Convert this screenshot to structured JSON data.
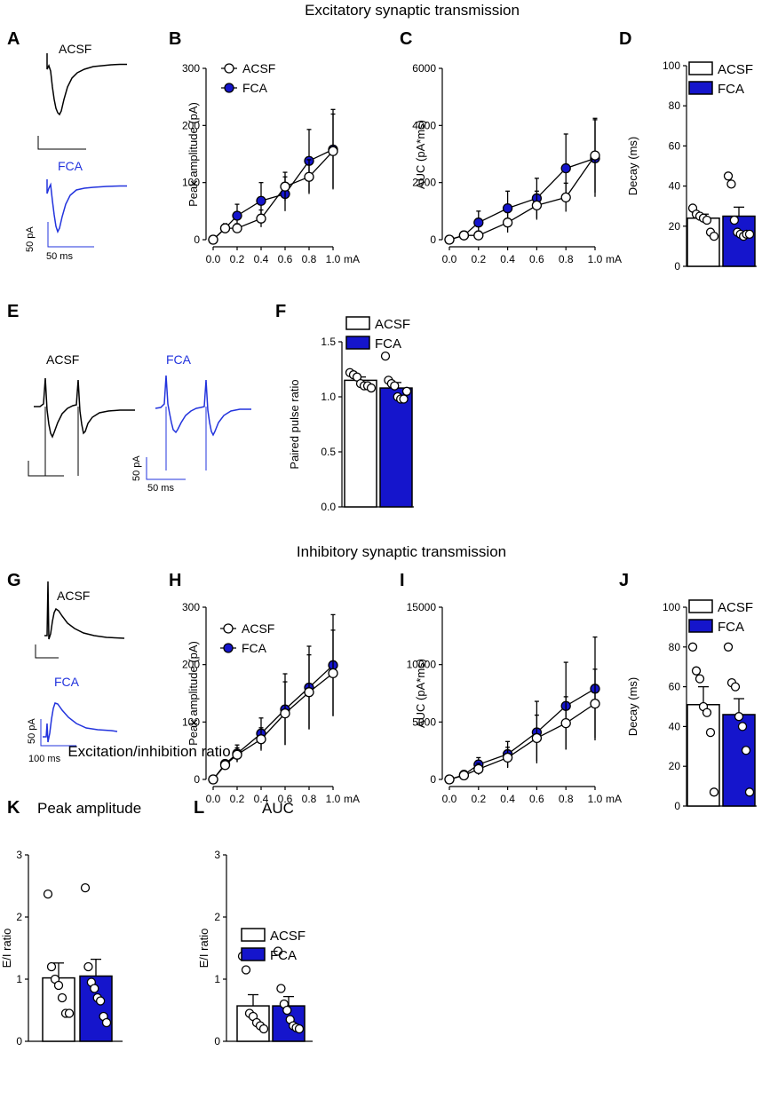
{
  "titles": {
    "excitatory": "Excitatory synaptic transmission",
    "inhibitory": "Inhibitory synaptic transmission",
    "ei": "Excitation/inhibition ratio"
  },
  "colors": {
    "acsf": "#000000",
    "fca": "#1515CC",
    "trace_fca": "#2233DD"
  },
  "traces": {
    "A": {
      "letter": "A",
      "label_top": "ACSF",
      "label_bottom": "FCA",
      "scale_y": "50 pA",
      "scale_x": "50 ms"
    },
    "E": {
      "letter": "E",
      "label_left": "ACSF",
      "label_right": "FCA",
      "scale_y": "50 pA",
      "scale_x": "50 ms"
    },
    "G": {
      "letter": "G",
      "label_top": "ACSF",
      "label_bottom": "FCA",
      "scale_y": "50 pA",
      "scale_x": "100 ms"
    }
  },
  "chart_data": [
    {
      "id": "B",
      "letter": "B",
      "type": "line",
      "ylabel": "Peak amplitude (pA)",
      "xunit": "mA",
      "x": [
        0,
        0.1,
        0.2,
        0.4,
        0.6,
        0.8,
        1.0
      ],
      "xticks": [
        "0.0",
        "0.2",
        "0.4",
        "0.6",
        "0.8",
        "1.0"
      ],
      "ylim": [
        0,
        300
      ],
      "yticks": [
        "0",
        "100",
        "200",
        "300"
      ],
      "legend": [
        "ACSF",
        "FCA"
      ],
      "series": [
        {
          "name": "ACSF",
          "values": [
            0,
            20,
            20,
            37,
            93,
            110,
            155
          ],
          "errors": [
            0,
            5,
            8,
            15,
            25,
            30,
            65
          ]
        },
        {
          "name": "FCA",
          "values": [
            0,
            20,
            42,
            68,
            80,
            138,
            158
          ],
          "errors": [
            0,
            8,
            20,
            32,
            30,
            55,
            70
          ]
        }
      ]
    },
    {
      "id": "C",
      "letter": "C",
      "type": "line",
      "ylabel": "AUC (pA*ms)",
      "xunit": "mA",
      "x": [
        0,
        0.1,
        0.2,
        0.4,
        0.6,
        0.8,
        1.0
      ],
      "xticks": [
        "0.0",
        "0.2",
        "0.4",
        "0.6",
        "0.8",
        "1.0"
      ],
      "ylim": [
        0,
        6000
      ],
      "yticks": [
        "0",
        "2000",
        "4000",
        "6000"
      ],
      "legend": [],
      "series": [
        {
          "name": "ACSF",
          "values": [
            0,
            150,
            150,
            600,
            1200,
            1480,
            2950
          ],
          "errors": [
            0,
            60,
            150,
            350,
            500,
            500,
            1300
          ]
        },
        {
          "name": "FCA",
          "values": [
            0,
            150,
            600,
            1100,
            1450,
            2500,
            2850
          ],
          "errors": [
            0,
            80,
            400,
            600,
            700,
            1200,
            1350
          ]
        }
      ]
    },
    {
      "id": "D",
      "letter": "D",
      "type": "bar",
      "ylabel": "Decay (ms)",
      "ylim": [
        0,
        100
      ],
      "yticks": [
        "0",
        "20",
        "40",
        "60",
        "80",
        "100"
      ],
      "legend": [
        "ACSF",
        "FCA"
      ],
      "groups": [
        {
          "name": "ACSF",
          "mean": 24,
          "sem": 2,
          "points": [
            29,
            26,
            25,
            24,
            23,
            17,
            15
          ]
        },
        {
          "name": "FCA",
          "mean": 25,
          "sem": 4.5,
          "points": [
            45,
            41,
            23,
            17,
            16,
            15,
            16,
            16
          ]
        }
      ]
    },
    {
      "id": "F",
      "letter": "F",
      "type": "bar",
      "ylabel": "Paired pulse ratio",
      "ylim": [
        0,
        1.5
      ],
      "yticks": [
        "0.0",
        "0.5",
        "1.0",
        "1.5"
      ],
      "legend": [
        "ACSF",
        "FCA"
      ],
      "groups": [
        {
          "name": "ACSF",
          "mean": 1.15,
          "sem": 0.03,
          "points": [
            1.22,
            1.2,
            1.18,
            1.12,
            1.1,
            1.1,
            1.08
          ]
        },
        {
          "name": "FCA",
          "mean": 1.08,
          "sem": 0.05,
          "points": [
            1.37,
            1.15,
            1.12,
            1.1,
            1.0,
            0.98,
            0.98,
            1.05
          ]
        }
      ]
    },
    {
      "id": "H",
      "letter": "H",
      "type": "line",
      "ylabel": "Peak amplitude (pA)",
      "xunit": "mA",
      "x": [
        0,
        0.1,
        0.2,
        0.4,
        0.6,
        0.8,
        1.0
      ],
      "xticks": [
        "0.0",
        "0.2",
        "0.4",
        "0.6",
        "0.8",
        "1.0"
      ],
      "ylim": [
        0,
        300
      ],
      "yticks": [
        "0",
        "100",
        "200",
        "300"
      ],
      "legend": [
        "ACSF",
        "FCA"
      ],
      "series": [
        {
          "name": "ACSF",
          "values": [
            0,
            25,
            43,
            70,
            115,
            152,
            185
          ],
          "errors": [
            0,
            5,
            12,
            20,
            55,
            65,
            75
          ]
        },
        {
          "name": "FCA",
          "values": [
            0,
            27,
            45,
            80,
            122,
            160,
            199
          ],
          "errors": [
            0,
            6,
            15,
            27,
            62,
            72,
            88
          ]
        }
      ]
    },
    {
      "id": "I",
      "letter": "I",
      "type": "line",
      "ylabel": "AUC (pA*ms)",
      "xunit": "mA",
      "x": [
        0,
        0.1,
        0.2,
        0.4,
        0.6,
        0.8,
        1.0
      ],
      "xticks": [
        "0.0",
        "0.2",
        "0.4",
        "0.6",
        "0.8",
        "1.0"
      ],
      "ylim": [
        0,
        15000
      ],
      "yticks": [
        "0",
        "5000",
        "10000",
        "15000"
      ],
      "legend": [],
      "series": [
        {
          "name": "ACSF",
          "values": [
            0,
            350,
            900,
            1900,
            3600,
            4900,
            6600
          ],
          "errors": [
            0,
            150,
            500,
            900,
            2000,
            2300,
            3000
          ]
        },
        {
          "name": "FCA",
          "values": [
            0,
            400,
            1300,
            2200,
            4100,
            6400,
            7900
          ],
          "errors": [
            0,
            180,
            600,
            1100,
            2700,
            3800,
            4500
          ]
        }
      ]
    },
    {
      "id": "J",
      "letter": "J",
      "type": "bar",
      "ylabel": "Decay (ms)",
      "ylim": [
        0,
        100
      ],
      "yticks": [
        "0",
        "20",
        "40",
        "60",
        "80",
        "100"
      ],
      "legend": [
        "ACSF",
        "FCA"
      ],
      "groups": [
        {
          "name": "ACSF",
          "mean": 51,
          "sem": 9,
          "points": [
            80,
            68,
            64,
            50,
            47,
            37,
            7
          ]
        },
        {
          "name": "FCA",
          "mean": 46,
          "sem": 8,
          "points": [
            80,
            62,
            60,
            45,
            40,
            28,
            7
          ]
        }
      ]
    },
    {
      "id": "K",
      "letter": "K",
      "type": "bar",
      "title": "Peak amplitude",
      "ylabel": "E/I ratio",
      "ylim": [
        0,
        3
      ],
      "yticks": [
        "0",
        "1",
        "2",
        "3"
      ],
      "legend": [],
      "groups": [
        {
          "name": "ACSF",
          "mean": 1.02,
          "sem": 0.24,
          "points": [
            2.37,
            1.2,
            1.0,
            0.9,
            0.7,
            0.45,
            0.45
          ]
        },
        {
          "name": "FCA",
          "mean": 1.05,
          "sem": 0.27,
          "points": [
            2.47,
            1.2,
            0.95,
            0.85,
            0.7,
            0.65,
            0.4,
            0.3
          ]
        }
      ]
    },
    {
      "id": "L",
      "letter": "L",
      "type": "bar",
      "title": "AUC",
      "ylabel": "E/I ratio",
      "ylim": [
        0,
        3
      ],
      "yticks": [
        "0",
        "1",
        "2",
        "3"
      ],
      "legend": [
        "ACSF",
        "FCA"
      ],
      "groups": [
        {
          "name": "ACSF",
          "mean": 0.57,
          "sem": 0.18,
          "points": [
            1.37,
            1.15,
            0.45,
            0.4,
            0.3,
            0.25,
            0.2
          ]
        },
        {
          "name": "FCA",
          "mean": 0.57,
          "sem": 0.15,
          "points": [
            1.45,
            0.85,
            0.6,
            0.5,
            0.35,
            0.25,
            0.22,
            0.2
          ]
        }
      ]
    }
  ]
}
